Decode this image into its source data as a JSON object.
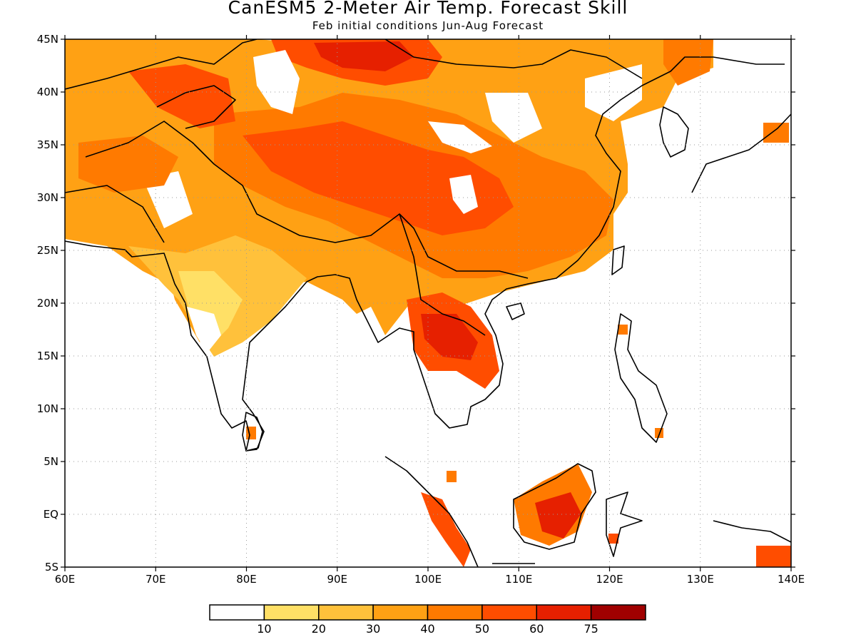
{
  "title": "CanESM5 2-Meter Air Temp. Forecast Skill",
  "subtitle": "Feb initial conditions  Jun-Aug Forecast",
  "map": {
    "lon_range": [
      60,
      140
    ],
    "lat_range": [
      -5,
      45
    ],
    "lon_ticks": [
      "60E",
      "70E",
      "80E",
      "90E",
      "100E",
      "110E",
      "120E",
      "130E",
      "140E"
    ],
    "lat_ticks": [
      "5S",
      "EQ",
      "5N",
      "10N",
      "15N",
      "20N",
      "25N",
      "30N",
      "35N",
      "40N",
      "45N"
    ],
    "grid": true
  },
  "colorbar": {
    "bins": [
      {
        "color": "#ffffff"
      },
      {
        "color": "#ffe066"
      },
      {
        "color": "#ffc13b"
      },
      {
        "color": "#ffa114"
      },
      {
        "color": "#ff7a00"
      },
      {
        "color": "#ff4d00"
      },
      {
        "color": "#e62000"
      },
      {
        "color": "#a00000"
      }
    ],
    "labels": [
      "10",
      "20",
      "30",
      "40",
      "50",
      "60",
      "75"
    ]
  }
}
